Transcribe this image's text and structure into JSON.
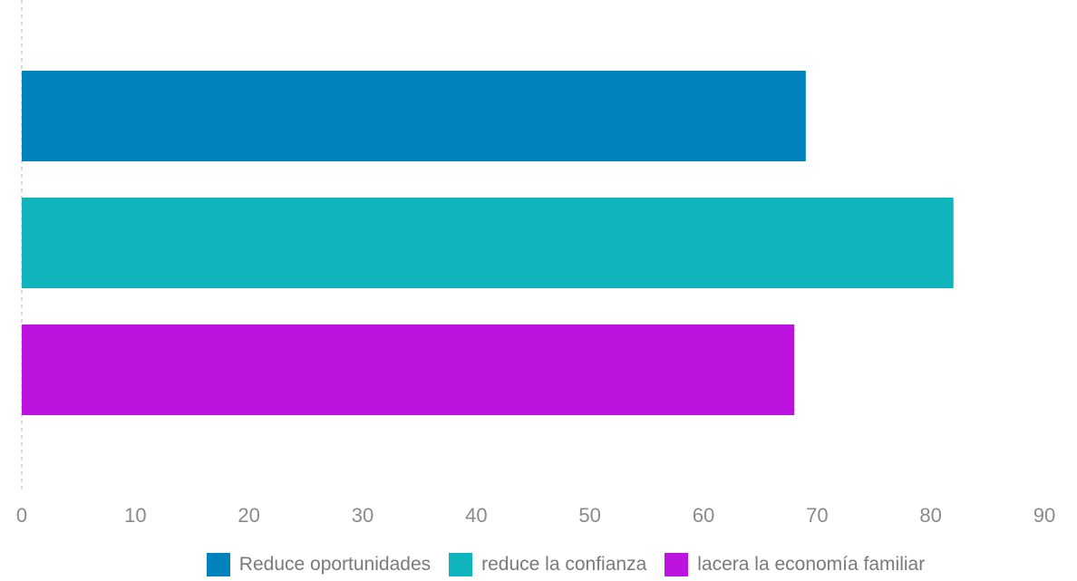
{
  "chart_data": {
    "type": "bar",
    "orientation": "horizontal",
    "categories": [
      ""
    ],
    "series": [
      {
        "name": "Reduce oportunidades",
        "values": [
          69
        ],
        "color": "#0083bd"
      },
      {
        "name": "reduce la confianza",
        "values": [
          82
        ],
        "color": "#10b4bd"
      },
      {
        "name": "lacera la economía familiar",
        "values": [
          68
        ],
        "color": "#bc13df"
      }
    ],
    "xlim": [
      0,
      90
    ],
    "xticks": [
      "0",
      "10",
      "20",
      "30",
      "40",
      "50",
      "60",
      "70",
      "80",
      "90"
    ],
    "grid": false,
    "legend": "bottom"
  }
}
